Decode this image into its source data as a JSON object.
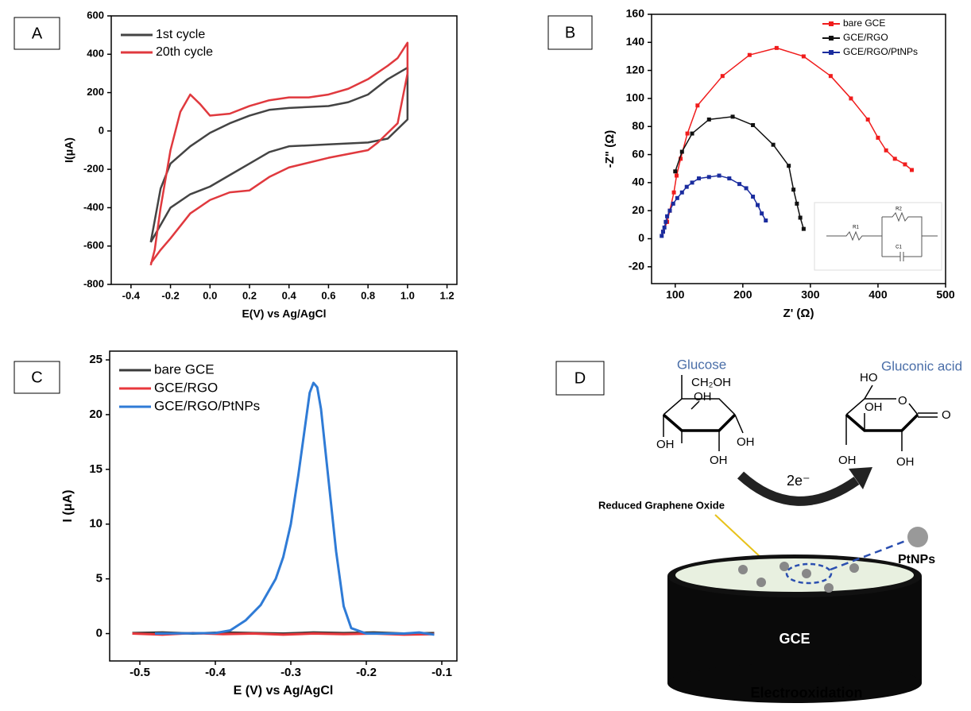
{
  "chart_data": [
    {
      "type": "line",
      "panel": "A",
      "x_label": "E(V) vs Ag/AgCl",
      "y_label": "I(μA)",
      "xlim": [
        -0.5,
        1.25
      ],
      "ylim": [
        -800,
        600
      ],
      "xticks": [
        -0.4,
        -0.2,
        {
          "value": 0,
          "label": "0.0"
        },
        0.2,
        0.4,
        0.6,
        0.8,
        {
          "value": 1,
          "label": "1.0"
        },
        1.2
      ],
      "yticks": [
        -800,
        -600,
        -400,
        -200,
        0,
        200,
        400,
        600
      ],
      "legend": "upper left",
      "series": [
        {
          "name": "1st cycle",
          "color": "#444444",
          "x": [
            -0.3,
            -0.25,
            -0.2,
            -0.1,
            0,
            0.1,
            0.2,
            0.3,
            0.4,
            0.6,
            0.7,
            0.8,
            0.9,
            0.95,
            1.0,
            1.0,
            0.9,
            0.8,
            0.6,
            0.4,
            0.3,
            0.2,
            0.1,
            0,
            -0.1,
            -0.2,
            -0.3
          ],
          "values": [
            -580,
            -300,
            -170,
            -80,
            -10,
            40,
            80,
            110,
            120,
            130,
            150,
            190,
            270,
            300,
            330,
            60,
            -40,
            -60,
            -70,
            -80,
            -110,
            -170,
            -230,
            -290,
            -330,
            -400,
            -580
          ]
        },
        {
          "name": "20th cycle",
          "color": "#e0393e",
          "x": [
            -0.3,
            -0.28,
            -0.25,
            -0.2,
            -0.15,
            -0.1,
            -0.05,
            0,
            0.1,
            0.2,
            0.3,
            0.4,
            0.5,
            0.6,
            0.7,
            0.8,
            0.9,
            0.95,
            1.0,
            1.0,
            0.95,
            0.9,
            0.85,
            0.8,
            0.6,
            0.4,
            0.3,
            0.2,
            0.1,
            0,
            -0.1,
            -0.2,
            -0.25,
            -0.3
          ],
          "values": [
            -700,
            -620,
            -400,
            -100,
            100,
            190,
            140,
            80,
            90,
            130,
            160,
            175,
            175,
            190,
            220,
            270,
            340,
            380,
            460,
            300,
            40,
            -10,
            -60,
            -100,
            -140,
            -190,
            -240,
            -310,
            -320,
            -360,
            -430,
            -560,
            -620,
            -690
          ]
        }
      ]
    },
    {
      "type": "line",
      "panel": "B",
      "x_label": "Z' (Ω)",
      "y_label": "-Z\" (Ω)",
      "xlim": [
        65,
        500
      ],
      "ylim": [
        -32,
        160
      ],
      "xticks": [
        100,
        200,
        300,
        400,
        500
      ],
      "yticks": [
        -20,
        0,
        20,
        40,
        60,
        80,
        100,
        120,
        140,
        160
      ],
      "legend": "upper right",
      "marker": "square",
      "inset_labels": [
        "R1",
        "R2",
        "C1"
      ],
      "series": [
        {
          "name": "bare GCE",
          "color": "#f01c1c",
          "x": [
            82,
            88,
            92,
            98,
            102,
            108,
            118,
            133,
            170,
            210,
            250,
            290,
            330,
            360,
            385,
            400,
            412,
            425,
            440,
            450
          ],
          "values": [
            5,
            12,
            20,
            33,
            45,
            57,
            75,
            95,
            116,
            131,
            136,
            130,
            116,
            100,
            85,
            72,
            63,
            57,
            53,
            49
          ]
        },
        {
          "name": "GCE/RGO",
          "color": "#111111",
          "x": [
            100,
            110,
            125,
            150,
            185,
            215,
            245,
            268,
            275,
            280,
            285,
            290
          ],
          "values": [
            48,
            62,
            75,
            85,
            87,
            81,
            67,
            52,
            35,
            25,
            15,
            7
          ]
        },
        {
          "name": "GCE/RGO/PtNPs",
          "color": "#1a2c9e",
          "x": [
            80,
            82,
            84,
            86,
            88,
            92,
            97,
            103,
            110,
            117,
            125,
            135,
            150,
            165,
            180,
            195,
            205,
            215,
            222,
            228,
            234
          ],
          "values": [
            2,
            5,
            8,
            12,
            16,
            20,
            25,
            29,
            33,
            37,
            40,
            43,
            44,
            45,
            43,
            39,
            36,
            30,
            24,
            18,
            13
          ]
        }
      ]
    },
    {
      "type": "line",
      "panel": "C",
      "x_label": "E (V) vs Ag/AgCl",
      "y_label": "I (μA)",
      "xlim": [
        -0.54,
        -0.08
      ],
      "ylim": [
        -2.5,
        25.8
      ],
      "xticks": [
        -0.5,
        -0.4,
        -0.3,
        -0.2,
        -0.1
      ],
      "yticks": [
        0,
        5,
        10,
        15,
        20,
        25
      ],
      "legend": "upper left",
      "series": [
        {
          "name": "bare GCE",
          "color": "#3a3a3a",
          "x": [
            -0.51,
            -0.47,
            -0.43,
            -0.39,
            -0.35,
            -0.31,
            -0.27,
            -0.23,
            -0.19,
            -0.15,
            -0.11
          ],
          "values": [
            0.05,
            0.1,
            0.0,
            0.1,
            0.05,
            0.0,
            0.1,
            0.05,
            0.1,
            0.0,
            0.05
          ]
        },
        {
          "name": "GCE/RGO",
          "color": "#e8383d",
          "x": [
            -0.51,
            -0.47,
            -0.43,
            -0.39,
            -0.35,
            -0.31,
            -0.27,
            -0.23,
            -0.19,
            -0.15,
            -0.11
          ],
          "values": [
            0.0,
            -0.1,
            0.05,
            -0.05,
            0.0,
            -0.1,
            0.0,
            -0.05,
            0.0,
            -0.1,
            -0.05
          ]
        },
        {
          "name": "GCE/RGO/PtNPs",
          "color": "#2f7bd6",
          "x": [
            -0.48,
            -0.4,
            -0.38,
            -0.36,
            -0.34,
            -0.32,
            -0.31,
            -0.3,
            -0.29,
            -0.28,
            -0.275,
            -0.27,
            -0.265,
            -0.26,
            -0.25,
            -0.24,
            -0.23,
            -0.22,
            -0.2,
            -0.15,
            -0.13,
            -0.11
          ],
          "values": [
            0,
            0.05,
            0.3,
            1.2,
            2.6,
            5,
            7,
            10,
            14.5,
            19.5,
            22,
            22.9,
            22.5,
            20.5,
            14,
            7.5,
            2.5,
            0.5,
            0,
            0,
            0.1,
            -0.1
          ]
        }
      ]
    }
  ],
  "diagram": {
    "panel": "D",
    "reactant": "Glucose",
    "product": "Gluconic acid",
    "reactant_groups": [
      "CH₂OH",
      "OH",
      "OH",
      "OH",
      "OH"
    ],
    "product_groups": [
      "HO",
      "O",
      "O",
      "OH",
      "OH",
      "OH"
    ],
    "electrons": "2e⁻",
    "support": "Reduced Graphene Oxide",
    "particles": "PtNPs",
    "electrode": "GCE",
    "caption": "Electrooxidation"
  }
}
